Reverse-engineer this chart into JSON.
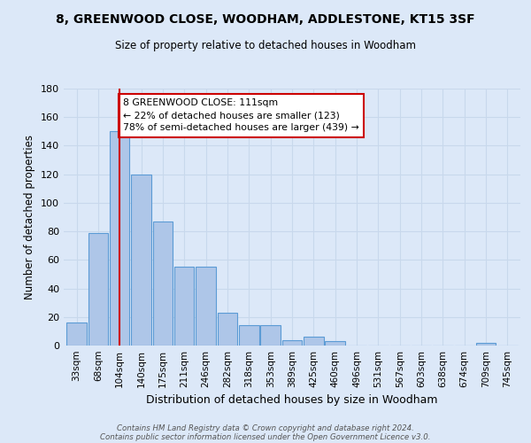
{
  "title": "8, GREENWOOD CLOSE, WOODHAM, ADDLESTONE, KT15 3SF",
  "subtitle": "Size of property relative to detached houses in Woodham",
  "xlabel": "Distribution of detached houses by size in Woodham",
  "ylabel": "Number of detached properties",
  "bin_labels": [
    "33sqm",
    "68sqm",
    "104sqm",
    "140sqm",
    "175sqm",
    "211sqm",
    "246sqm",
    "282sqm",
    "318sqm",
    "353sqm",
    "389sqm",
    "425sqm",
    "460sqm",
    "496sqm",
    "531sqm",
    "567sqm",
    "603sqm",
    "638sqm",
    "674sqm",
    "709sqm",
    "745sqm"
  ],
  "bar_values": [
    16,
    79,
    150,
    120,
    87,
    55,
    55,
    23,
    14,
    14,
    4,
    6,
    3,
    0,
    0,
    0,
    0,
    0,
    0,
    2,
    0
  ],
  "bar_color": "#aec6e8",
  "bar_edgecolor": "#5b9bd5",
  "background_color": "#dce8f8",
  "grid_color": "#c8d8ec",
  "vline_color": "#cc0000",
  "annotation_text": "8 GREENWOOD CLOSE: 111sqm\n← 22% of detached houses are smaller (123)\n78% of semi-detached houses are larger (439) →",
  "annotation_box_color": "#ffffff",
  "annotation_box_edgecolor": "#cc0000",
  "ylim": [
    0,
    180
  ],
  "yticks": [
    0,
    20,
    40,
    60,
    80,
    100,
    120,
    140,
    160,
    180
  ],
  "footer_line1": "Contains HM Land Registry data © Crown copyright and database right 2024.",
  "footer_line2": "Contains public sector information licensed under the Open Government Licence v3.0."
}
